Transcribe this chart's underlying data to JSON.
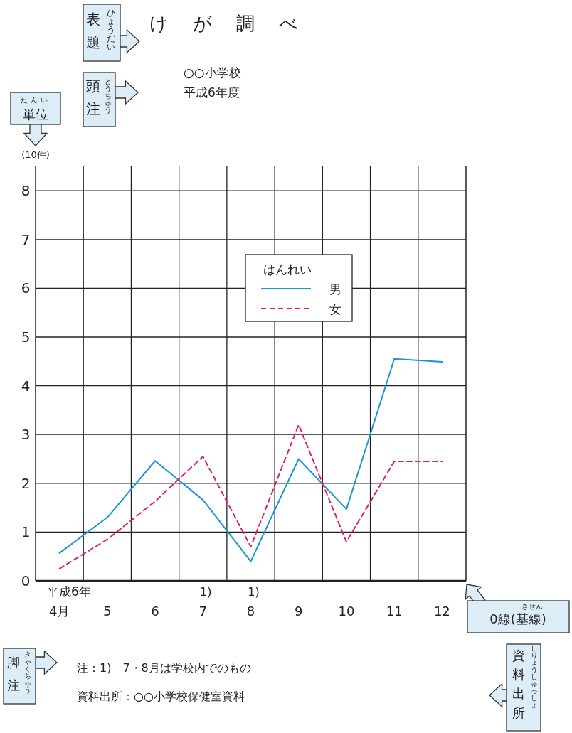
{
  "chart_data": {
    "type": "line",
    "title": "けが調べ",
    "subtitle": "○○小学校",
    "ylabel": "(10件)",
    "legend_title": "はんれい",
    "legend": "top",
    "grid": true,
    "categories": [
      "4月",
      "5",
      "6",
      "7",
      "8",
      "9",
      "10",
      "11",
      "12"
    ],
    "ylim": [
      0,
      8.5
    ],
    "yticks": [
      0,
      1,
      2,
      3,
      4,
      5,
      6,
      7,
      8
    ],
    "series": [
      {
        "name": "男",
        "color": "#1a96d8",
        "line_style": "solid",
        "values": [
          0.57,
          1.3,
          2.46,
          1.66,
          0.4,
          2.5,
          1.47,
          4.55,
          4.49
        ]
      },
      {
        "name": "女",
        "color": "#e0206a",
        "line_style": "dashed",
        "values": [
          0.25,
          0.85,
          1.63,
          2.55,
          0.7,
          3.2,
          0.8,
          2.45,
          2.45
        ]
      }
    ],
    "annotations": [
      "平成6年度",
      "平成6年",
      "1)",
      "1)",
      "注：1)　7・8月は学校内でのもの",
      "資料出所：○○小学校保健室資料",
      "表題",
      "ひょうだい",
      "頭注",
      "とうちゅう",
      "単位",
      "たんい",
      "0線(基線)",
      "きせん",
      "脚注",
      "きゃくちゅう",
      "資料出所",
      "しりょうしゅっしょ"
    ]
  }
}
